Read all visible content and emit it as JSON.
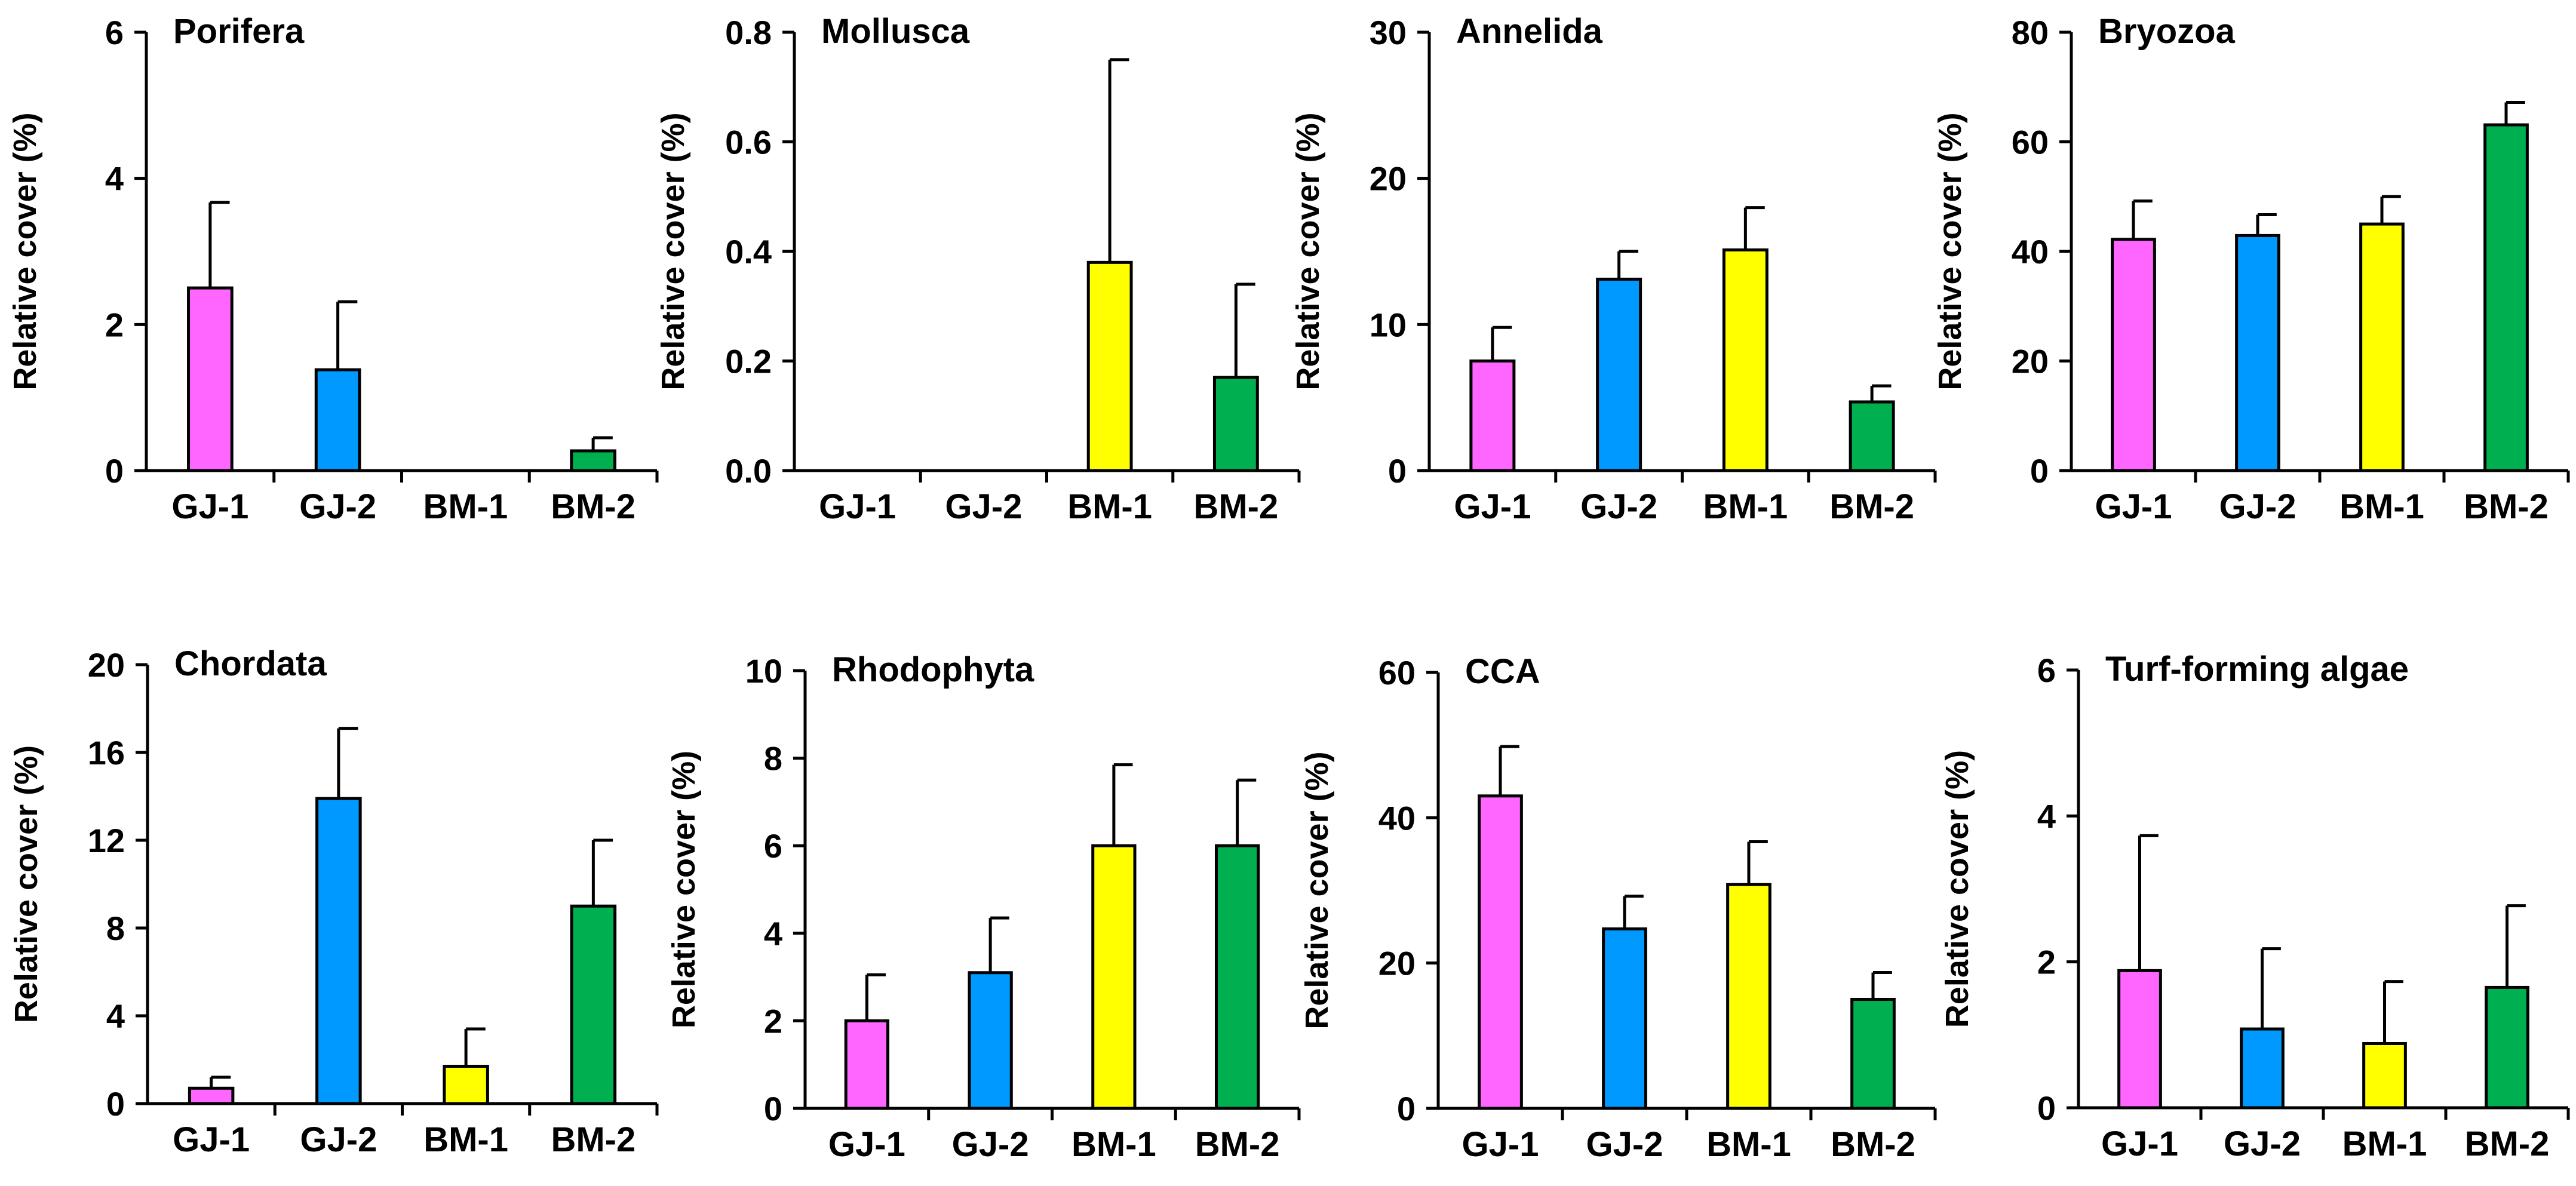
{
  "chart_data": [
    {
      "type": "bar",
      "title": "Porifera",
      "ylabel": "Relative cover (%)",
      "xlabel": "",
      "categories": [
        "GJ-1",
        "GJ-2",
        "BM-1",
        "BM-2"
      ],
      "values": [
        2.5,
        1.38,
        0,
        0.27
      ],
      "errors": [
        1.17,
        0.93,
        0,
        0.18
      ],
      "ylim": [
        0,
        6
      ],
      "yticks": [
        "0",
        "2",
        "4",
        "6"
      ],
      "colors": [
        "#FF66FF",
        "#0099FF",
        "#FFFF00",
        "#00B050"
      ]
    },
    {
      "type": "bar",
      "title": "Mollusca",
      "ylabel": "Relative cover (%)",
      "xlabel": "",
      "categories": [
        "GJ-1",
        "GJ-2",
        "BM-1",
        "BM-2"
      ],
      "values": [
        0,
        0,
        0.38,
        0.17
      ],
      "errors": [
        0,
        0,
        0.37,
        0.17
      ],
      "ylim": [
        0,
        0.8
      ],
      "yticks": [
        "0.0",
        "0.2",
        "0.4",
        "0.6",
        "0.8"
      ],
      "colors": [
        "#FF66FF",
        "#0099FF",
        "#FFFF00",
        "#00B050"
      ]
    },
    {
      "type": "bar",
      "title": "Annelida",
      "ylabel": "Relative cover (%)",
      "xlabel": "",
      "categories": [
        "GJ-1",
        "GJ-2",
        "BM-1",
        "BM-2"
      ],
      "values": [
        7.5,
        13.1,
        15.1,
        4.7
      ],
      "errors": [
        2.3,
        1.9,
        2.9,
        1.1
      ],
      "ylim": [
        0,
        30
      ],
      "yticks": [
        "0",
        "10",
        "20",
        "30"
      ],
      "colors": [
        "#FF66FF",
        "#0099FF",
        "#FFFF00",
        "#00B050"
      ]
    },
    {
      "type": "bar",
      "title": "Bryozoa",
      "ylabel": "Relative cover (%)",
      "xlabel": "",
      "categories": [
        "GJ-1",
        "GJ-2",
        "BM-1",
        "BM-2"
      ],
      "values": [
        42.2,
        42.9,
        45.0,
        63.1
      ],
      "errors": [
        7.0,
        3.8,
        5.0,
        4.1
      ],
      "ylim": [
        0,
        80
      ],
      "yticks": [
        "0",
        "20",
        "40",
        "60",
        "80"
      ],
      "colors": [
        "#FF66FF",
        "#0099FF",
        "#FFFF00",
        "#00B050"
      ]
    },
    {
      "type": "bar",
      "title": "Chordata",
      "ylabel": "Relative cover (%)",
      "xlabel": "",
      "categories": [
        "GJ-1",
        "GJ-2",
        "BM-1",
        "BM-2"
      ],
      "values": [
        0.7,
        13.9,
        1.7,
        9.0
      ],
      "errors": [
        0.5,
        3.2,
        1.7,
        3.0
      ],
      "ylim": [
        0,
        20
      ],
      "yticks": [
        "0",
        "4",
        "8",
        "12",
        "16",
        "20"
      ],
      "colors": [
        "#FF66FF",
        "#0099FF",
        "#FFFF00",
        "#00B050"
      ]
    },
    {
      "type": "bar",
      "title": "Rhodophyta",
      "ylabel": "Relative cover (%)",
      "xlabel": "",
      "categories": [
        "GJ-1",
        "GJ-2",
        "BM-1",
        "BM-2"
      ],
      "values": [
        2.0,
        3.1,
        6.0,
        6.0
      ],
      "errors": [
        1.05,
        1.25,
        1.85,
        1.5
      ],
      "ylim": [
        0,
        10
      ],
      "yticks": [
        "0",
        "2",
        "4",
        "6",
        "8",
        "10"
      ],
      "colors": [
        "#FF66FF",
        "#0099FF",
        "#FFFF00",
        "#00B050"
      ]
    },
    {
      "type": "bar",
      "title": "CCA",
      "ylabel": "Relative cover (%)",
      "xlabel": "",
      "categories": [
        "GJ-1",
        "GJ-2",
        "BM-1",
        "BM-2"
      ],
      "values": [
        43.0,
        24.7,
        30.8,
        15.0
      ],
      "errors": [
        6.8,
        4.5,
        5.9,
        3.7
      ],
      "ylim": [
        0,
        60
      ],
      "yticks": [
        "0",
        "20",
        "40",
        "60"
      ],
      "colors": [
        "#FF66FF",
        "#0099FF",
        "#FFFF00",
        "#00B050"
      ]
    },
    {
      "type": "bar",
      "title": "Turf-forming algae",
      "ylabel": "Relative cover (%)",
      "xlabel": "",
      "categories": [
        "GJ-1",
        "GJ-2",
        "BM-1",
        "BM-2"
      ],
      "values": [
        1.88,
        1.08,
        0.88,
        1.65
      ],
      "errors": [
        1.85,
        1.1,
        0.85,
        1.12
      ],
      "ylim": [
        0,
        6
      ],
      "yticks": [
        "0",
        "2",
        "4",
        "6"
      ],
      "colors": [
        "#FF66FF",
        "#0099FF",
        "#FFFF00",
        "#00B050"
      ]
    }
  ]
}
